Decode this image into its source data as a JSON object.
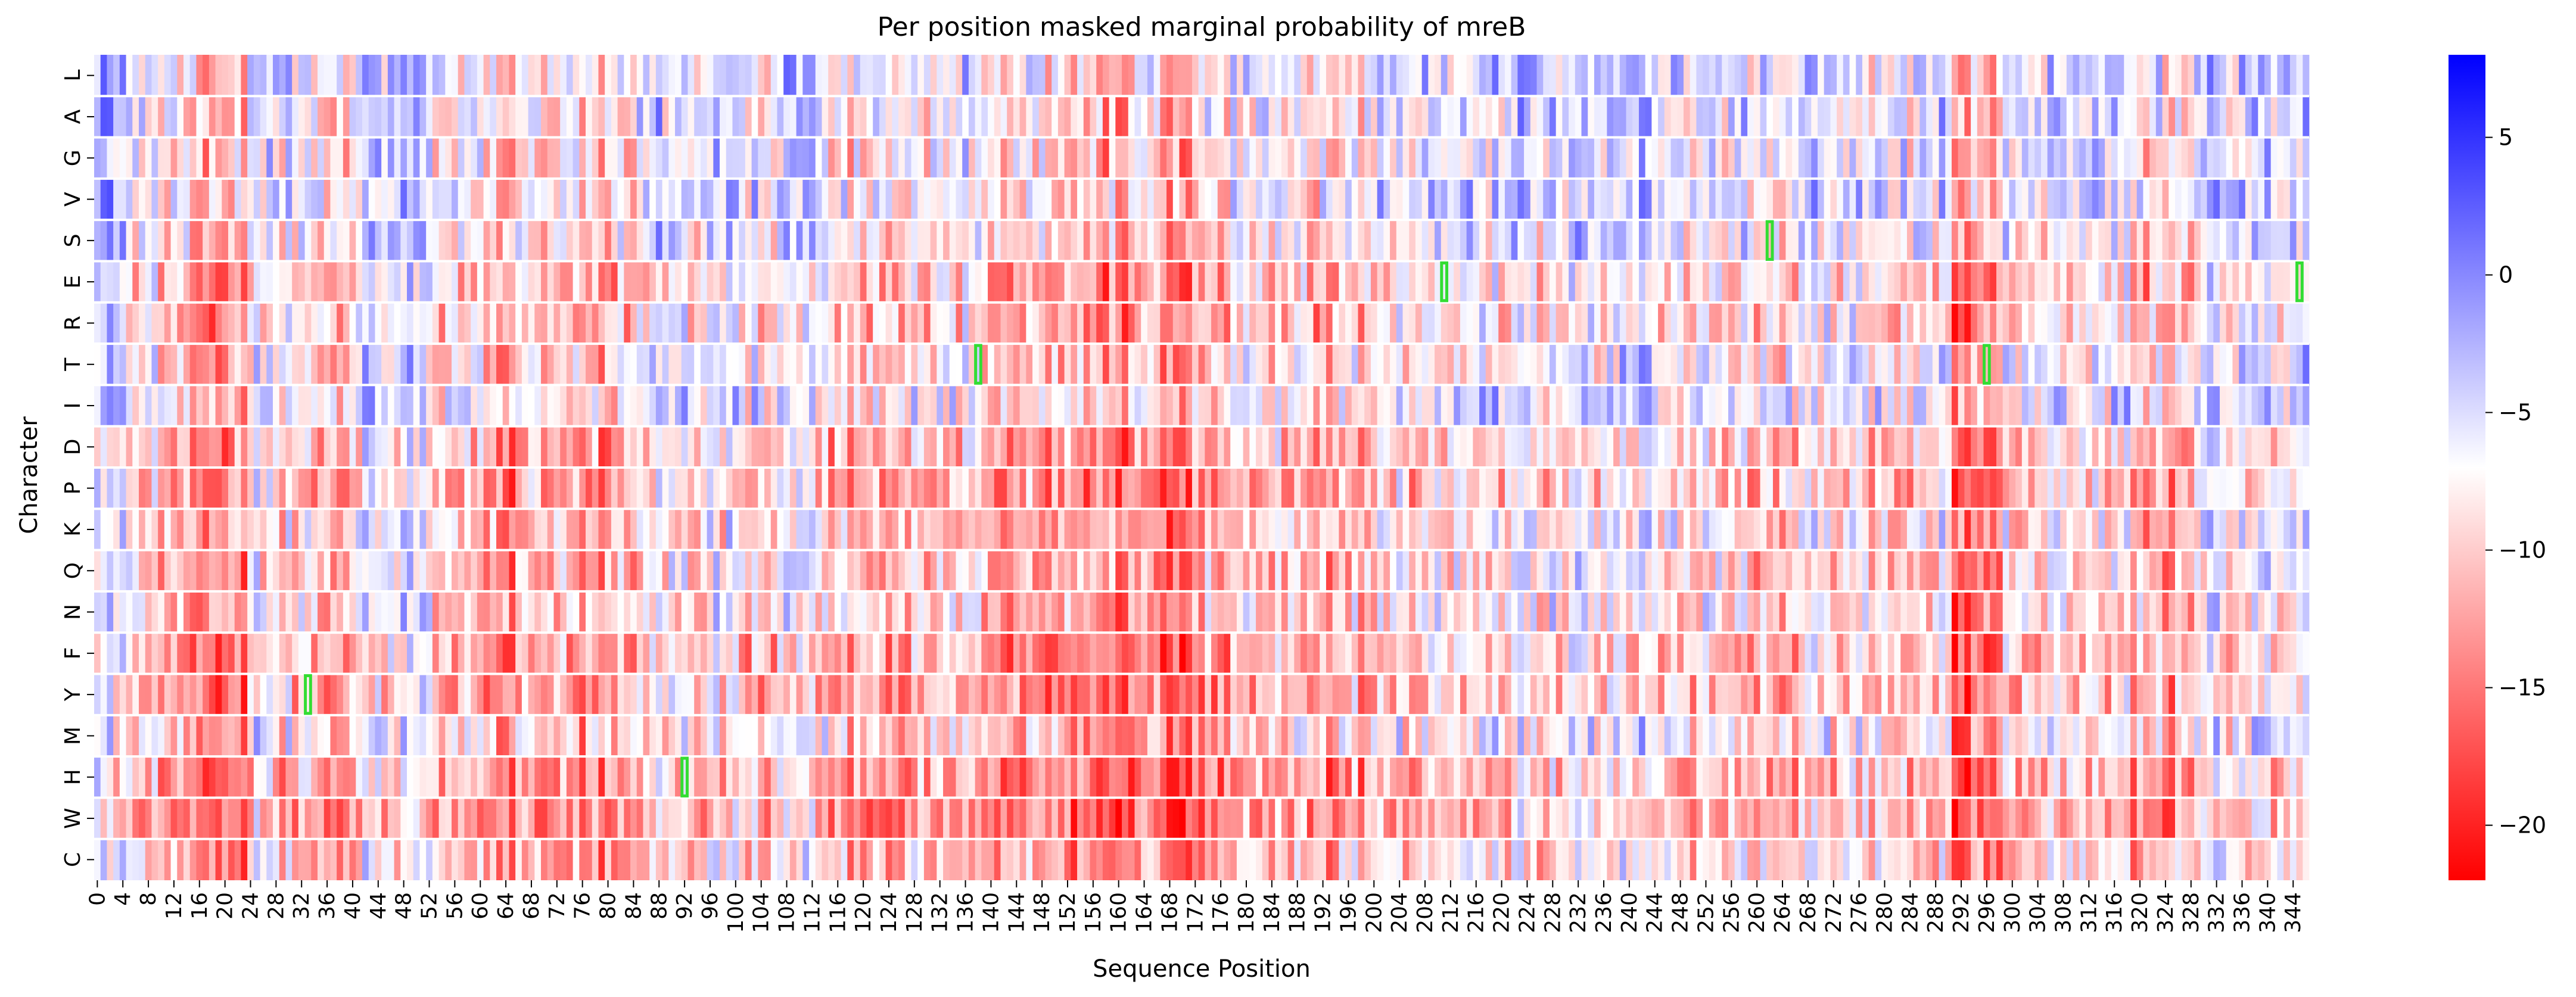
{
  "chart_data": {
    "type": "heatmap",
    "title": "Per position masked marginal probability of mreB",
    "xlabel": "Sequence Position",
    "ylabel": "Character",
    "rows": [
      "L",
      "A",
      "G",
      "V",
      "S",
      "E",
      "R",
      "T",
      "I",
      "D",
      "P",
      "K",
      "Q",
      "N",
      "F",
      "Y",
      "M",
      "H",
      "W",
      "C"
    ],
    "x_range": [
      0,
      346
    ],
    "x_ticks": [
      0,
      4,
      8,
      12,
      16,
      20,
      24,
      28,
      32,
      36,
      40,
      44,
      48,
      52,
      56,
      60,
      64,
      68,
      72,
      76,
      80,
      84,
      88,
      92,
      96,
      100,
      104,
      108,
      112,
      116,
      120,
      124,
      128,
      132,
      136,
      140,
      144,
      148,
      152,
      156,
      160,
      164,
      168,
      172,
      176,
      180,
      184,
      188,
      192,
      196,
      200,
      204,
      208,
      212,
      216,
      220,
      224,
      228,
      232,
      236,
      240,
      244,
      248,
      252,
      256,
      260,
      264,
      268,
      272,
      276,
      280,
      284,
      288,
      292,
      296,
      300,
      304,
      308,
      312,
      316,
      320,
      324,
      328,
      332,
      336,
      340,
      344
    ],
    "colormap": [
      "#ff0000",
      "#ffffff",
      "#0000ff"
    ],
    "value_range": [
      -22,
      8
    ],
    "colorbar_ticks": [
      5,
      0,
      -5,
      -10,
      -15,
      -20
    ],
    "grid": false,
    "highlights": [
      {
        "position": 33,
        "row": "Y"
      },
      {
        "position": 92,
        "row": "H"
      },
      {
        "position": 138,
        "row": "T"
      },
      {
        "position": 211,
        "row": "E"
      },
      {
        "position": 262,
        "row": "S"
      },
      {
        "position": 296,
        "row": "T"
      },
      {
        "position": 345,
        "row": "E"
      }
    ],
    "highlight_color": "#33dd33",
    "position_profile": [
      {
        "from": 0,
        "to": 4,
        "level": -6
      },
      {
        "from": 5,
        "to": 9,
        "level": -8
      },
      {
        "from": 10,
        "to": 23,
        "level": -12
      },
      {
        "from": 24,
        "to": 30,
        "level": -7
      },
      {
        "from": 31,
        "to": 40,
        "level": -9
      },
      {
        "from": 41,
        "to": 52,
        "level": -5
      },
      {
        "from": 53,
        "to": 62,
        "level": -9
      },
      {
        "from": 63,
        "to": 84,
        "level": -11
      },
      {
        "from": 85,
        "to": 99,
        "level": -7
      },
      {
        "from": 100,
        "to": 112,
        "level": -8
      },
      {
        "from": 113,
        "to": 128,
        "level": -10
      },
      {
        "from": 129,
        "to": 138,
        "level": -8
      },
      {
        "from": 139,
        "to": 155,
        "level": -11
      },
      {
        "from": 156,
        "to": 172,
        "level": -13
      },
      {
        "from": 173,
        "to": 200,
        "level": -10
      },
      {
        "from": 201,
        "to": 214,
        "level": -8
      },
      {
        "from": 215,
        "to": 232,
        "level": -7
      },
      {
        "from": 233,
        "to": 248,
        "level": -6
      },
      {
        "from": 249,
        "to": 266,
        "level": -9
      },
      {
        "from": 267,
        "to": 290,
        "level": -8
      },
      {
        "from": 291,
        "to": 298,
        "level": -15
      },
      {
        "from": 299,
        "to": 318,
        "level": -7
      },
      {
        "from": 319,
        "to": 328,
        "level": -11
      },
      {
        "from": 329,
        "to": 346,
        "level": -6
      }
    ],
    "row_profile": {
      "L": 3,
      "A": 2,
      "G": 1.5,
      "V": 2.5,
      "S": 1.5,
      "E": -1,
      "R": -1,
      "T": 0.5,
      "I": 2,
      "D": -1.5,
      "P": -2,
      "K": -0.5,
      "Q": -1,
      "N": -0.5,
      "F": -2.5,
      "Y": -2.5,
      "M": 0,
      "H": -3,
      "W": -3.5,
      "C": -1.5
    }
  }
}
